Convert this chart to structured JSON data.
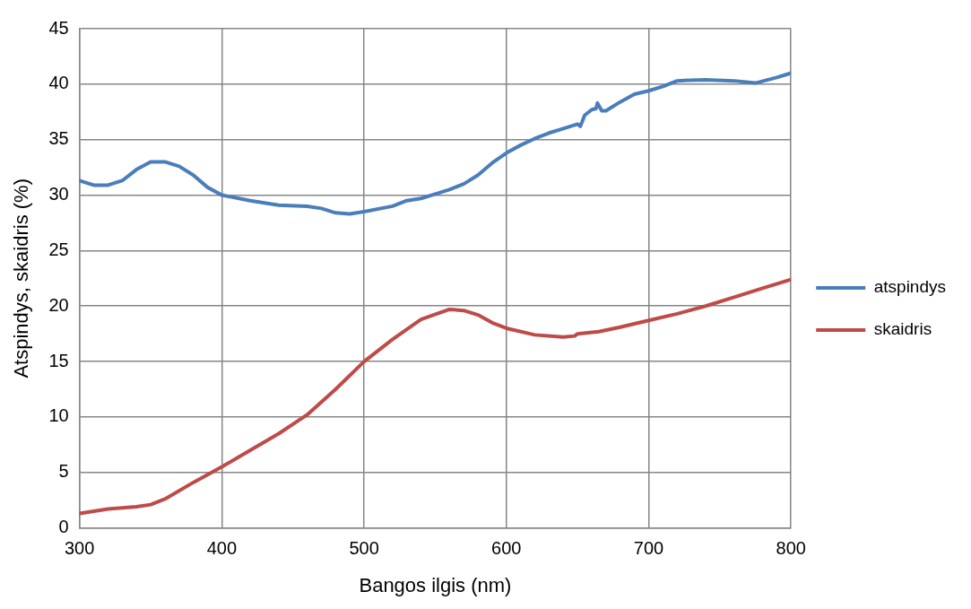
{
  "chart_data": {
    "type": "line",
    "xlabel": "Bangos ilgis (nm)",
    "ylabel": "Atspindys, skaidris (%)",
    "xlim": [
      300,
      800
    ],
    "xticks": [
      300,
      400,
      500,
      600,
      700,
      800
    ],
    "ylim": [
      0,
      45
    ],
    "yticks": [
      0,
      5,
      10,
      15,
      20,
      25,
      30,
      35,
      40,
      45
    ],
    "grid": true,
    "legend": "right",
    "marker": "none",
    "line_style": "solid",
    "series": [
      {
        "name": "atspindys",
        "color": "#4a7ebb",
        "x": [
          300,
          310,
          320,
          330,
          340,
          350,
          360,
          370,
          380,
          390,
          400,
          420,
          440,
          460,
          470,
          480,
          490,
          500,
          520,
          530,
          540,
          550,
          560,
          570,
          580,
          590,
          600,
          610,
          620,
          630,
          640,
          650,
          652,
          655,
          660,
          663,
          664,
          667,
          670,
          680,
          690,
          700,
          710,
          720,
          740,
          760,
          775,
          790,
          800
        ],
        "values": [
          31.3,
          30.9,
          30.9,
          31.3,
          32.3,
          33.0,
          33.0,
          32.6,
          31.8,
          30.7,
          30.0,
          29.5,
          29.1,
          29.0,
          28.8,
          28.4,
          28.3,
          28.5,
          29.0,
          29.5,
          29.7,
          30.1,
          30.5,
          31.0,
          31.8,
          32.9,
          33.8,
          34.5,
          35.1,
          35.6,
          36.0,
          36.4,
          36.2,
          37.2,
          37.7,
          37.8,
          38.3,
          37.6,
          37.6,
          38.4,
          39.1,
          39.4,
          39.8,
          40.3,
          40.4,
          40.3,
          40.1,
          40.6,
          41.0
        ]
      },
      {
        "name": "skaidris",
        "color": "#be4b48",
        "x": [
          300,
          320,
          340,
          350,
          360,
          380,
          400,
          420,
          440,
          460,
          480,
          500,
          520,
          540,
          560,
          570,
          580,
          590,
          600,
          620,
          640,
          648,
          650,
          665,
          680,
          700,
          720,
          740,
          760,
          780,
          800
        ],
        "values": [
          1.3,
          1.7,
          1.9,
          2.1,
          2.6,
          4.1,
          5.5,
          7.0,
          8.5,
          10.2,
          12.5,
          15.0,
          17.0,
          18.8,
          19.7,
          19.6,
          19.2,
          18.5,
          18.0,
          17.4,
          17.2,
          17.3,
          17.5,
          17.7,
          18.1,
          18.7,
          19.3,
          20.0,
          20.8,
          21.6,
          22.4
        ]
      }
    ]
  }
}
